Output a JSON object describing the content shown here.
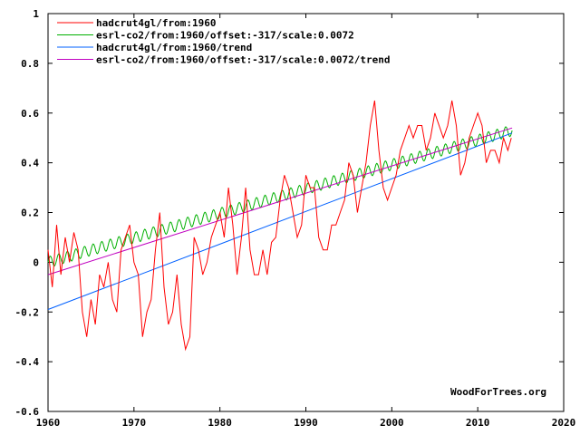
{
  "chart_data": {
    "type": "line",
    "title": "",
    "xlabel": "",
    "ylabel": "",
    "xlim": [
      1960,
      2020
    ],
    "ylim": [
      -0.6,
      1
    ],
    "x_ticks": [
      "1960",
      "1970",
      "1980",
      "1990",
      "2000",
      "2010",
      "2020"
    ],
    "y_ticks": [
      "-0.6",
      "-0.4",
      "-0.2",
      "0",
      "0.2",
      "0.4",
      "0.6",
      "0.8",
      "1"
    ],
    "grid": false,
    "legend_position": "top-left",
    "watermark": "WoodForTrees.org",
    "series": [
      {
        "name": "hadcrut4gl/from:1960",
        "color": "#ff0000",
        "x": [
          1960.0,
          1960.5,
          1961.0,
          1961.5,
          1962.0,
          1962.5,
          1963.0,
          1963.5,
          1964.0,
          1964.5,
          1965.0,
          1965.5,
          1966.0,
          1966.5,
          1967.0,
          1967.5,
          1968.0,
          1968.5,
          1969.0,
          1969.5,
          1970.0,
          1970.5,
          1971.0,
          1971.5,
          1972.0,
          1972.5,
          1973.0,
          1973.5,
          1974.0,
          1974.5,
          1975.0,
          1975.5,
          1976.0,
          1976.5,
          1977.0,
          1977.5,
          1978.0,
          1978.5,
          1979.0,
          1979.5,
          1980.0,
          1980.5,
          1981.0,
          1981.5,
          1982.0,
          1982.5,
          1983.0,
          1983.5,
          1984.0,
          1984.5,
          1985.0,
          1985.5,
          1986.0,
          1986.5,
          1987.0,
          1987.5,
          1988.0,
          1988.5,
          1989.0,
          1989.5,
          1990.0,
          1990.5,
          1991.0,
          1991.5,
          1992.0,
          1992.5,
          1993.0,
          1993.5,
          1994.0,
          1994.5,
          1995.0,
          1995.5,
          1996.0,
          1996.5,
          1997.0,
          1997.5,
          1998.0,
          1998.5,
          1999.0,
          1999.5,
          2000.0,
          2000.5,
          2001.0,
          2001.5,
          2002.0,
          2002.5,
          2003.0,
          2003.5,
          2004.0,
          2004.5,
          2005.0,
          2005.5,
          2006.0,
          2006.5,
          2007.0,
          2007.5,
          2008.0,
          2008.5,
          2009.0,
          2009.5,
          2010.0,
          2010.5,
          2011.0,
          2011.5,
          2012.0,
          2012.5,
          2013.0,
          2013.5,
          2013.9
        ],
        "y": [
          0.05,
          -0.1,
          0.15,
          -0.05,
          0.1,
          0.0,
          0.12,
          0.05,
          -0.2,
          -0.3,
          -0.15,
          -0.25,
          -0.05,
          -0.1,
          0.0,
          -0.15,
          -0.2,
          0.05,
          0.1,
          0.15,
          0.0,
          -0.05,
          -0.3,
          -0.2,
          -0.15,
          0.05,
          0.2,
          -0.1,
          -0.25,
          -0.2,
          -0.05,
          -0.25,
          -0.35,
          -0.3,
          0.1,
          0.05,
          -0.05,
          0.0,
          0.1,
          0.15,
          0.2,
          0.1,
          0.3,
          0.15,
          -0.05,
          0.1,
          0.3,
          0.05,
          -0.05,
          -0.05,
          0.05,
          -0.05,
          0.08,
          0.1,
          0.25,
          0.35,
          0.3,
          0.2,
          0.1,
          0.15,
          0.35,
          0.3,
          0.3,
          0.1,
          0.05,
          0.05,
          0.15,
          0.15,
          0.2,
          0.25,
          0.4,
          0.35,
          0.2,
          0.3,
          0.4,
          0.55,
          0.65,
          0.45,
          0.3,
          0.25,
          0.3,
          0.35,
          0.45,
          0.5,
          0.55,
          0.5,
          0.55,
          0.55,
          0.45,
          0.5,
          0.6,
          0.55,
          0.5,
          0.55,
          0.65,
          0.55,
          0.35,
          0.4,
          0.5,
          0.55,
          0.6,
          0.55,
          0.4,
          0.45,
          0.45,
          0.4,
          0.5,
          0.45,
          0.5
        ],
        "stroke_width": 1
      },
      {
        "name": "esrl-co2/from:1960/offset:-317/scale:0.0072",
        "color": "#00b000",
        "x": [
          1960,
          2014
        ],
        "y": [
          0.0,
          0.53
        ],
        "seasonal_amplitude": 0.022,
        "stroke_width": 1
      },
      {
        "name": "hadcrut4gl/from:1960/trend",
        "color": "#0060ff",
        "x": [
          1960,
          2014
        ],
        "y": [
          -0.19,
          0.52
        ],
        "stroke_width": 1
      },
      {
        "name": "esrl-co2/from:1960/offset:-317/scale:0.0072/trend",
        "color": "#c000c0",
        "x": [
          1960,
          2014
        ],
        "y": [
          -0.05,
          0.54
        ],
        "stroke_width": 1
      }
    ]
  }
}
